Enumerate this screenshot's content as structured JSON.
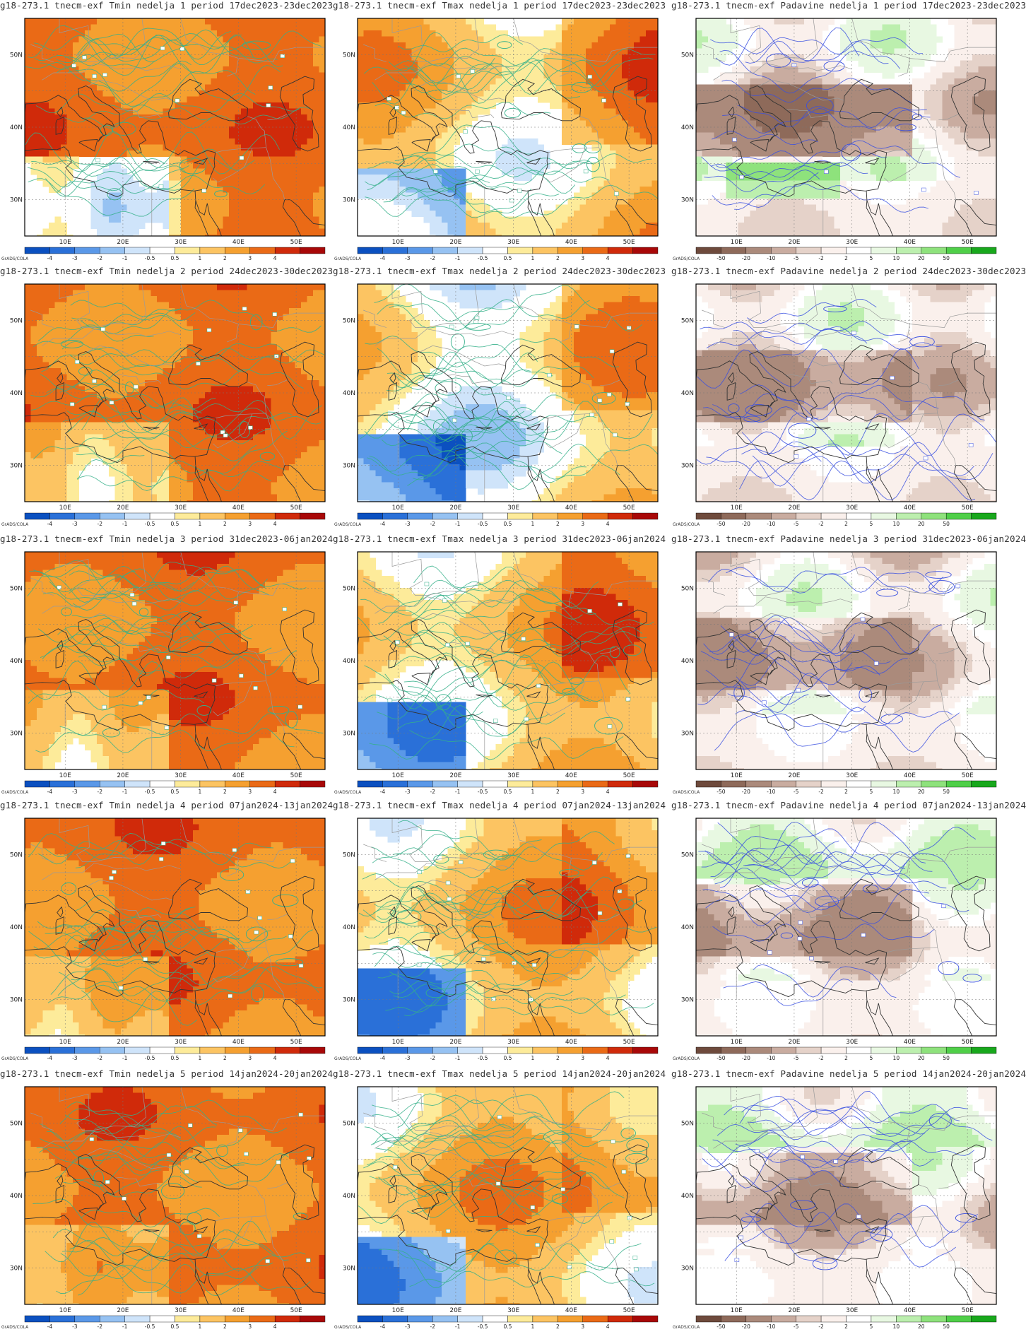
{
  "colorbars": {
    "temp": {
      "labels": [
        "-4",
        "-3",
        "-2",
        "-1",
        "-0.5",
        "0.5",
        "1",
        "2",
        "3",
        "4"
      ],
      "colors": [
        "#0b50c0",
        "#2a70d8",
        "#5a98e8",
        "#96c2f2",
        "#cfe4fa",
        "#ffffff",
        "#fdeb9a",
        "#fcc462",
        "#f5a030",
        "#ea6a16",
        "#d02a0a",
        "#a80808"
      ]
    },
    "precip": {
      "labels": [
        "-50",
        "-20",
        "-10",
        "-5",
        "-2",
        "2",
        "5",
        "10",
        "20",
        "50"
      ],
      "colors": [
        "#6e4a3c",
        "#8e6a5a",
        "#ab8a7b",
        "#c9aca0",
        "#e5d2c9",
        "#faf0ec",
        "#ffffff",
        "#e8f8e2",
        "#bcefae",
        "#8ee27c",
        "#4fcf48",
        "#18a81c"
      ]
    }
  },
  "axes": {
    "lon_labels": [
      "10E",
      "20E",
      "30E",
      "40E",
      "50E"
    ],
    "lat_labels": [
      "50N",
      "40N",
      "30N"
    ]
  },
  "credit": "GrADS/COLA",
  "panels": [
    {
      "title": "g18-273.1 tnecm-exf Tmin nedelja 1 period 17dec2023-23dec2023",
      "variable": "Tmin",
      "week": 1
    },
    {
      "title": "g18-273.1 tnecm-exf Tmax nedelja 1 period 17dec2023-23dec2023",
      "variable": "Tmax",
      "week": 1
    },
    {
      "title": "g18-273.1 tnecm-exf Padavine nedelja 1 period 17dec2023-23dec2023",
      "variable": "Padavine",
      "week": 1
    },
    {
      "title": "g18-273.1 tnecm-exf Tmin nedelja 2 period 24dec2023-30dec2023",
      "variable": "Tmin",
      "week": 2
    },
    {
      "title": "g18-273.1 tnecm-exf Tmax nedelja 2 period 24dec2023-30dec2023",
      "variable": "Tmax",
      "week": 2
    },
    {
      "title": "g18-273.1 tnecm-exf Padavine nedelja 2 period 24dec2023-30dec2023",
      "variable": "Padavine",
      "week": 2
    },
    {
      "title": "g18-273.1 tnecm-exf Tmin nedelja 3 period 31dec2023-06jan2024",
      "variable": "Tmin",
      "week": 3
    },
    {
      "title": "g18-273.1 tnecm-exf Tmax nedelja 3 period 31dec2023-06jan2024",
      "variable": "Tmax",
      "week": 3
    },
    {
      "title": "g18-273.1 tnecm-exf Padavine nedelja 3 period 31dec2023-06jan2024",
      "variable": "Padavine",
      "week": 3
    },
    {
      "title": "g18-273.1 tnecm-exf Tmin nedelja 4 period 07jan2024-13jan2024",
      "variable": "Tmin",
      "week": 4
    },
    {
      "title": "g18-273.1 tnecm-exf Tmax nedelja 4 period 07jan2024-13jan2024",
      "variable": "Tmax",
      "week": 4
    },
    {
      "title": "g18-273.1 tnecm-exf Padavine nedelja 4 period 07jan2024-13jan2024",
      "variable": "Padavine",
      "week": 4
    },
    {
      "title": "g18-273.1 tnecm-exf Tmin nedelja 5 period 14jan2024-20jan2024",
      "variable": "Tmin",
      "week": 5
    },
    {
      "title": "g18-273.1 tnecm-exf Tmax nedelja 5 period 14jan2024-20jan2024",
      "variable": "Tmax",
      "week": 5
    },
    {
      "title": "g18-273.1 tnecm-exf Padavine nedelja 5 period 14jan2024-20jan2024",
      "variable": "Padavine",
      "week": 5
    }
  ]
}
